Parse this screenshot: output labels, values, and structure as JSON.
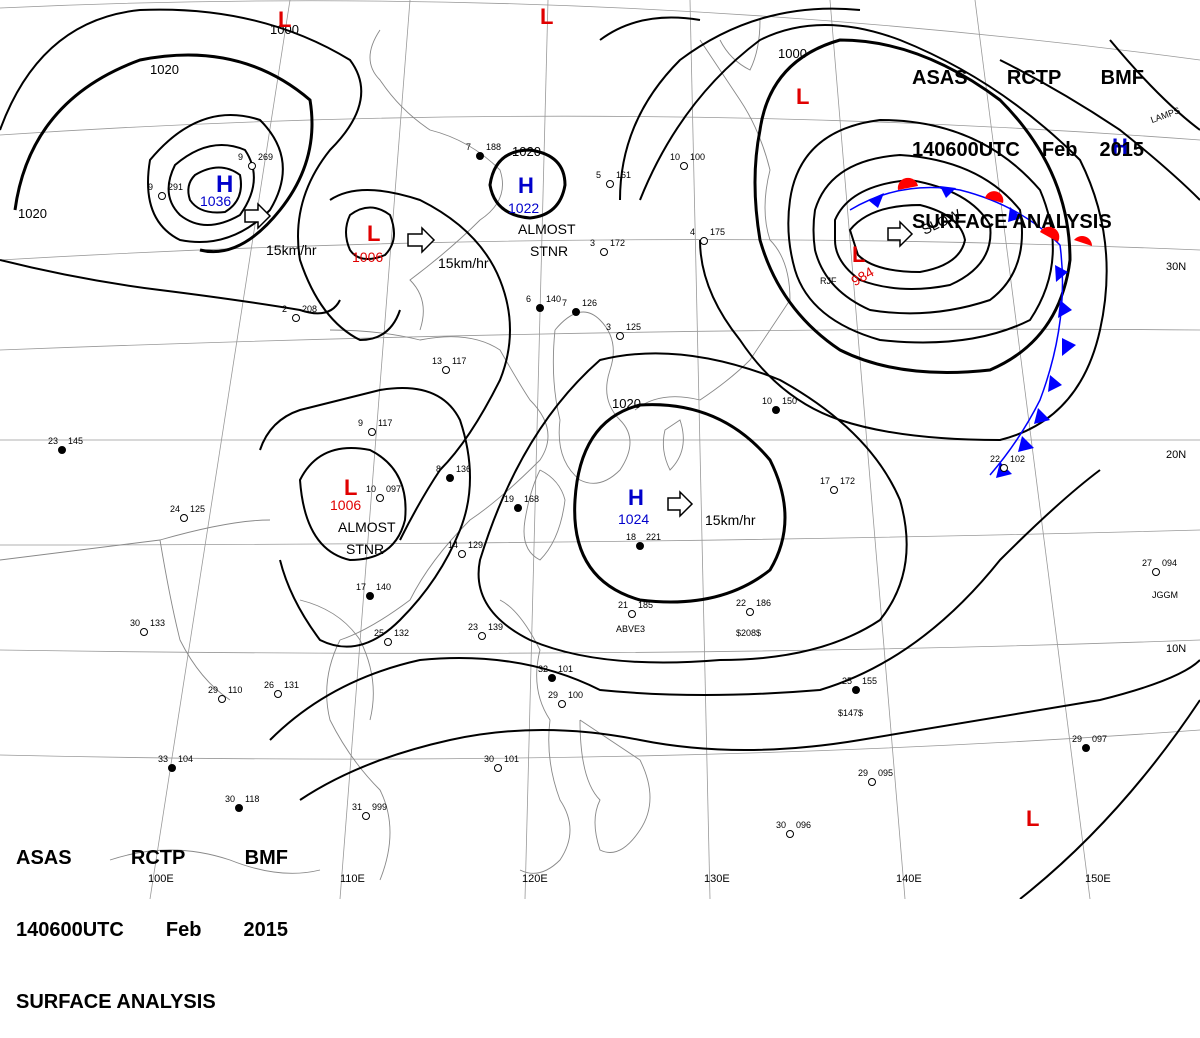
{
  "title": {
    "agency": "ASAS",
    "station": "RCTP",
    "office": "BMF",
    "datetime": "140600UTC",
    "month": "Feb",
    "year": "2015",
    "product": "SURFACE ANALYSIS"
  },
  "pressure_systems": [
    {
      "id": "high-mongolia",
      "type": "H",
      "label": "H",
      "pressure": "1036",
      "movement": "15km/hr"
    },
    {
      "id": "low-north-china",
      "type": "L",
      "label": "L",
      "pressure": "1006",
      "movement": "15km/hr"
    },
    {
      "id": "high-yellow-sea",
      "type": "H",
      "label": "H",
      "pressure": "1022",
      "note_line1": "ALMOST",
      "note_line2": "STNR"
    },
    {
      "id": "low-south-china",
      "type": "L",
      "label": "L",
      "pressure": "1006",
      "note_line1": "ALMOST",
      "note_line2": "STNR"
    },
    {
      "id": "high-east-china-sea",
      "type": "H",
      "label": "H",
      "pressure": "1024",
      "movement": "15km/hr"
    },
    {
      "id": "low-japan",
      "type": "L",
      "label": "L",
      "pressure": "984",
      "movement": "SLOW"
    },
    {
      "id": "low-kamchatka",
      "type": "L",
      "label": "L"
    },
    {
      "id": "high-northeast",
      "type": "H",
      "label": "H"
    },
    {
      "id": "low-top",
      "type": "L",
      "label": "L"
    },
    {
      "id": "low-top-center",
      "type": "L",
      "label": "L"
    },
    {
      "id": "low-pacific",
      "type": "L",
      "label": "L"
    }
  ],
  "isobar_labels": {
    "north": "1020",
    "north_low": "1000",
    "west": "1020",
    "yellow_sea": "1020",
    "east_china": "1020",
    "japan_low": "1000"
  },
  "longitudes": [
    "110E",
    "120E",
    "130E",
    "140E",
    "150E"
  ],
  "longitude_100": "100E",
  "latitudes": [
    "30N",
    "20N",
    "10N"
  ],
  "colors": {
    "high": "#0000cc",
    "low": "#e00000",
    "front_cold": "#0000ff",
    "front_warm": "#ff0000",
    "isobar": "#000000",
    "coast": "#888888"
  },
  "stations": [
    {
      "id": "s1",
      "t": "23",
      "p": "145"
    },
    {
      "id": "s2",
      "t": "24",
      "p": "125"
    },
    {
      "id": "s3",
      "t": "30",
      "p": "133"
    },
    {
      "id": "s4",
      "t": "33",
      "p": "104"
    },
    {
      "id": "s5",
      "t": "29",
      "p": "110"
    },
    {
      "id": "s6",
      "t": "26",
      "p": "131"
    },
    {
      "id": "s7",
      "t": "30",
      "p": "118"
    },
    {
      "id": "s8",
      "t": "31",
      "p": "999"
    },
    {
      "id": "s9",
      "t": "30",
      "p": "101"
    },
    {
      "id": "s10",
      "t": "32",
      "p": "101"
    },
    {
      "id": "s11",
      "t": "29",
      "p": "100"
    },
    {
      "id": "s12",
      "t": "25",
      "p": "132"
    },
    {
      "id": "s13",
      "t": "17",
      "p": "140"
    },
    {
      "id": "s14",
      "t": "14",
      "p": "129"
    },
    {
      "id": "s15",
      "t": "23",
      "p": "139"
    },
    {
      "id": "s16",
      "t": "19",
      "p": "168"
    },
    {
      "id": "s17",
      "t": "21",
      "p": "185"
    },
    {
      "id": "s18",
      "t": "22",
      "p": "186"
    },
    {
      "id": "s19",
      "t": "25",
      "p": "155"
    },
    {
      "id": "s20",
      "t": "29",
      "p": "095"
    },
    {
      "id": "s21",
      "t": "30",
      "p": "096"
    },
    {
      "id": "s22",
      "t": "29",
      "p": "097"
    },
    {
      "id": "s23",
      "t": "27",
      "p": "094"
    },
    {
      "id": "s24",
      "t": "17",
      "p": "172"
    },
    {
      "id": "s25",
      "t": "18",
      "p": "221"
    },
    {
      "id": "s26",
      "t": "13",
      "p": "117"
    },
    {
      "id": "s27",
      "t": "9",
      "p": "117"
    },
    {
      "id": "s28",
      "t": "8",
      "p": "136"
    },
    {
      "id": "s29",
      "t": "10",
      "p": "097"
    },
    {
      "id": "s30",
      "t": "3",
      "p": "172"
    },
    {
      "id": "s31",
      "t": "7",
      "p": "126"
    },
    {
      "id": "s32",
      "t": "2",
      "p": "208"
    },
    {
      "id": "s33",
      "t": "4",
      "p": "175"
    },
    {
      "id": "s34",
      "t": "7",
      "p": "188"
    },
    {
      "id": "s35",
      "t": "9",
      "p": "269"
    },
    {
      "id": "s36",
      "t": "9",
      "p": "291"
    },
    {
      "id": "s37",
      "t": "10",
      "p": "150"
    },
    {
      "id": "s38",
      "t": "22",
      "p": "102"
    },
    {
      "id": "s39",
      "t": "3",
      "p": "125"
    },
    {
      "id": "s40",
      "t": "6",
      "p": "140"
    },
    {
      "id": "s41",
      "t": "10",
      "p": "100"
    },
    {
      "id": "s42",
      "t": "5",
      "p": "161"
    }
  ],
  "annotations": [
    {
      "id": "abve3",
      "text": "ABVE3"
    },
    {
      "id": "s208",
      "text": "$208$"
    },
    {
      "id": "s147",
      "text": "$147$"
    },
    {
      "id": "jggm",
      "text": "JGGM"
    },
    {
      "id": "lamps",
      "text": "LAMPS"
    },
    {
      "id": "rjf",
      "text": "RJF"
    }
  ]
}
